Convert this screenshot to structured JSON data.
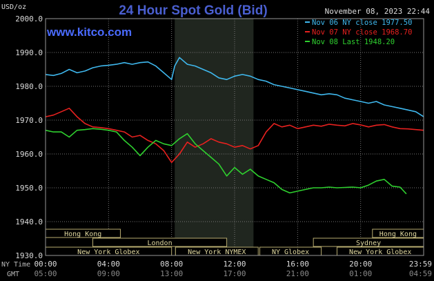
{
  "header": {
    "title": "24 Hour Spot Gold (Bid)",
    "website": "www.kitco.com",
    "unit": "USD/oz",
    "datetime": "November 08, 2023 22:44"
  },
  "axis_names": {
    "ny": "NY Time",
    "gmt": "GMT"
  },
  "markets": [
    {
      "name": "Hong Kong",
      "row": 0,
      "start": 0,
      "end": 4.75
    },
    {
      "name": "Hong Kong",
      "row": 0,
      "start": 20.75,
      "end": 24
    },
    {
      "name": "London",
      "row": 1,
      "start": 3,
      "end": 11.5
    },
    {
      "name": "Sydney",
      "row": 1,
      "start": 17,
      "end": 24
    },
    {
      "name": "New York Globex",
      "row": 2,
      "start": 0,
      "end": 8
    },
    {
      "name": "New York NYMEX",
      "row": 2,
      "start": 8.25,
      "end": 13.5
    },
    {
      "name": "NY Globex",
      "row": 2,
      "start": 13.6,
      "end": 17.5
    },
    {
      "name": "New York Globex",
      "row": 2,
      "start": 18.5,
      "end": 24
    }
  ],
  "chart_data": {
    "type": "line",
    "title": "24 Hour Spot Gold (Bid)",
    "ylabel": "USD/oz",
    "ylim": [
      1930,
      2000
    ],
    "yticks": [
      "1930.0",
      "1940.0",
      "1950.0",
      "1960.0",
      "1970.0",
      "1980.0",
      "1990.0",
      "2000.0"
    ],
    "xlim": [
      0,
      24
    ],
    "xticks": [
      {
        "h": 0,
        "ny": "00:00",
        "gmt": "05:00"
      },
      {
        "h": 4,
        "ny": "04:00",
        "gmt": "09:00"
      },
      {
        "h": 8,
        "ny": "08:00",
        "gmt": "13:00"
      },
      {
        "h": 12,
        "ny": "12:00",
        "gmt": "17:00"
      },
      {
        "h": 16,
        "ny": "16:00",
        "gmt": "21:00"
      },
      {
        "h": 20,
        "ny": "20:00",
        "gmt": "01:00"
      },
      {
        "h": 24,
        "ny": "23:59",
        "gmt": "04:59"
      }
    ],
    "shaded_period": [
      8.2,
      13.2
    ],
    "series": [
      {
        "name": "Nov 06 NY close 1977.50",
        "color": "#3fb8ee",
        "x": [
          0,
          0.5,
          1,
          1.5,
          2,
          2.5,
          3,
          3.5,
          4,
          4.5,
          5,
          5.5,
          6,
          6.5,
          7,
          7.5,
          8,
          8.2,
          8.5,
          9,
          9.5,
          10,
          10.5,
          11,
          11.5,
          12,
          12.5,
          13,
          13.5,
          14,
          14.5,
          15,
          15.5,
          16,
          16.5,
          17,
          17.5,
          18,
          18.5,
          19,
          19.5,
          20,
          20.5,
          21,
          21.5,
          22,
          22.5,
          23,
          23.5,
          24
        ],
        "values": [
          1983.5,
          1983.2,
          1983.8,
          1985,
          1984,
          1984.5,
          1985.5,
          1986,
          1986.2,
          1986.5,
          1987,
          1986.5,
          1987,
          1987.2,
          1986,
          1984,
          1982,
          1986,
          1988.5,
          1986.5,
          1986,
          1985,
          1984,
          1982.5,
          1982,
          1983,
          1983.5,
          1983,
          1982,
          1981.5,
          1980.5,
          1980,
          1979.5,
          1979,
          1978.5,
          1978,
          1977.5,
          1977.8,
          1977.5,
          1976.5,
          1976,
          1975.5,
          1975,
          1975.5,
          1974.5,
          1974,
          1973.5,
          1973,
          1972.5,
          1971
        ]
      },
      {
        "name": "Nov 07 NY close 1968.70",
        "color": "#e8211f",
        "x": [
          0,
          0.5,
          1,
          1.5,
          2,
          2.5,
          3,
          3.5,
          4,
          4.5,
          5,
          5.5,
          6,
          6.5,
          7,
          7.5,
          8,
          8.5,
          9,
          9.5,
          10,
          10.5,
          11,
          11.5,
          12,
          12.5,
          13,
          13.5,
          14,
          14.5,
          15,
          15.5,
          16,
          16.5,
          17,
          17.5,
          18,
          18.5,
          19,
          19.5,
          20,
          20.5,
          21,
          21.5,
          22,
          22.5,
          23,
          23.5,
          24
        ],
        "values": [
          1971,
          1971.5,
          1972.5,
          1973.5,
          1971,
          1969,
          1968,
          1967.8,
          1967.5,
          1967,
          1966.5,
          1965,
          1965.5,
          1964,
          1963,
          1961,
          1957.5,
          1960,
          1963.5,
          1962,
          1963,
          1964.5,
          1963.5,
          1963,
          1962,
          1962.5,
          1961.5,
          1962.5,
          1966.5,
          1969,
          1968,
          1968.5,
          1967.5,
          1968,
          1968.5,
          1968.2,
          1968.8,
          1968.5,
          1968.3,
          1969,
          1968.6,
          1968,
          1968.5,
          1968.7,
          1968,
          1967.5,
          1967.4,
          1967.2,
          1967
        ]
      },
      {
        "name": "Nov 08 Last 1948.20",
        "color": "#2fd12f",
        "x": [
          0,
          0.5,
          1,
          1.5,
          2,
          2.5,
          3,
          3.5,
          4,
          4.5,
          5,
          5.5,
          6,
          6.5,
          7,
          7.5,
          8,
          8.5,
          9,
          9.5,
          10,
          10.5,
          11,
          11.5,
          12,
          12.5,
          13,
          13.5,
          14,
          14.5,
          15,
          15.5,
          16,
          16.5,
          17,
          17.5,
          18,
          18.5,
          19,
          19.5,
          20,
          20.5,
          21,
          21.5,
          22,
          22.5,
          22.9
        ],
        "values": [
          1967,
          1966.5,
          1966.5,
          1965,
          1967,
          1967.2,
          1967.5,
          1967.3,
          1967,
          1966.5,
          1964,
          1962,
          1959.5,
          1962,
          1964,
          1963,
          1962.5,
          1964.5,
          1966,
          1963,
          1961,
          1959,
          1957,
          1953.5,
          1956,
          1954,
          1955.5,
          1953.5,
          1952.5,
          1951.5,
          1949.5,
          1948.5,
          1949,
          1949.5,
          1950,
          1950,
          1950.2,
          1950,
          1950.1,
          1950.2,
          1950,
          1950.8,
          1952,
          1952.5,
          1950.5,
          1950.2,
          1948.2
        ]
      }
    ]
  }
}
